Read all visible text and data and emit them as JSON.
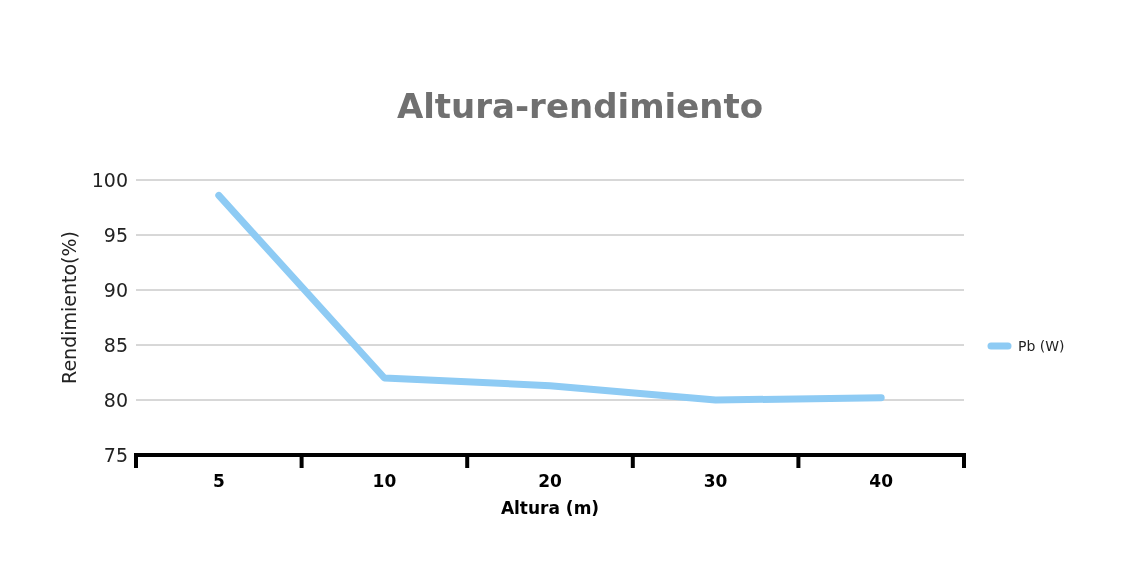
{
  "chart_data": {
    "type": "line",
    "title": "Altura-rendimiento",
    "xlabel": "Altura (m)",
    "ylabel": "Rendimiento(%)",
    "categories": [
      "5",
      "10",
      "20",
      "30",
      "40"
    ],
    "series": [
      {
        "name": "Pb (W)",
        "color": "#8ecbf4",
        "values": [
          98.6,
          82.0,
          81.3,
          80.0,
          80.2
        ]
      }
    ],
    "ylim": [
      75,
      100
    ],
    "yticks": [
      75,
      80,
      85,
      90,
      95,
      100
    ],
    "grid": "y",
    "legend": "right",
    "marker": "none",
    "line_style": "solid"
  }
}
